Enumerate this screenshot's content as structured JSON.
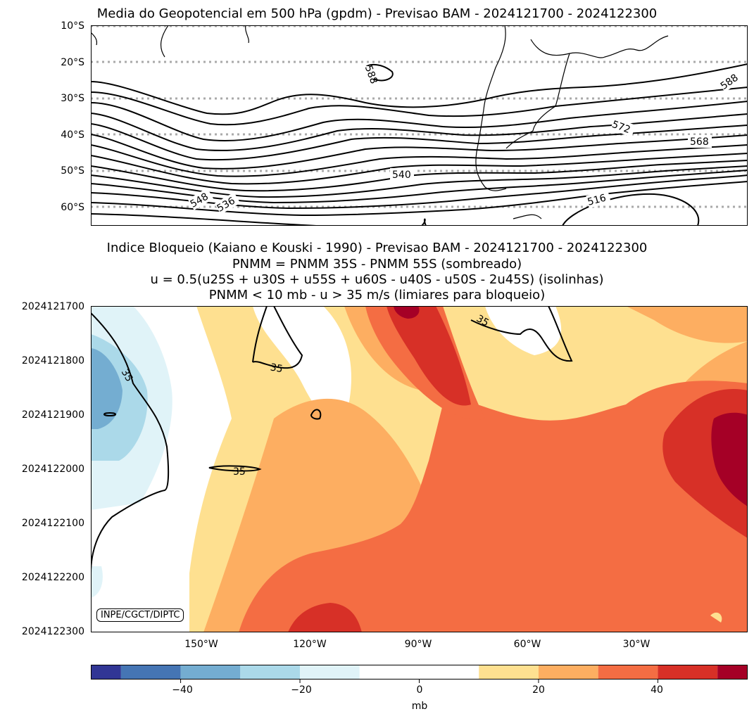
{
  "chart_data": [
    {
      "type": "contour",
      "title": "Media do Geopotencial em 500 hPa (gpdm) - Previsao BAM - 2024121700 - 2024122300",
      "yticks": [
        "10°S",
        "20°S",
        "30°S",
        "40°S",
        "50°S",
        "60°S"
      ],
      "ylim": [
        -65,
        -10
      ],
      "grid_lines_lat": [
        -10,
        -20,
        -30,
        -40,
        -50,
        -60
      ],
      "contour_labels": [
        "588",
        "588",
        "572",
        "568",
        "540",
        "548",
        "536",
        "516"
      ]
    },
    {
      "type": "heatmap",
      "title_lines": [
        "Indice Bloqueio (Kaiano e Kouski - 1990) - Previsao BAM - 2024121700 - 2024122300",
        "PNMM = PNMM 35S - PNMM 55S (sombreado)",
        "u = 0.5(u25S + u30S + u55S + u60S - u40S - u50S - 2u45S) (isolinhas)",
        "PNMM < 10 mb - u > 35 m/s (limiares para bloqueio)"
      ],
      "yticks": [
        "2024121700",
        "2024121800",
        "2024121900",
        "2024122000",
        "2024122100",
        "2024122200",
        "2024122300"
      ],
      "xticks": [
        "150°W",
        "120°W",
        "90°W",
        "60°W",
        "30°W"
      ],
      "contour_labels": [
        "35",
        "35",
        "35",
        "35"
      ],
      "credit": "INPE/CGCT/DIPTC"
    }
  ],
  "colorbar": {
    "ticks": [
      "−40",
      "−20",
      "0",
      "20",
      "40"
    ],
    "label": "mb",
    "range": [
      -55,
      55
    ],
    "levels": [
      -55,
      -50,
      -40,
      -30,
      -20,
      -10,
      10,
      20,
      30,
      40,
      50,
      55
    ],
    "colors": [
      "#313695",
      "#4575b4",
      "#74add1",
      "#abd9e9",
      "#e0f3f8",
      "#ffffff",
      "#fee090",
      "#fdae61",
      "#f46d43",
      "#d73027",
      "#a50026"
    ]
  }
}
